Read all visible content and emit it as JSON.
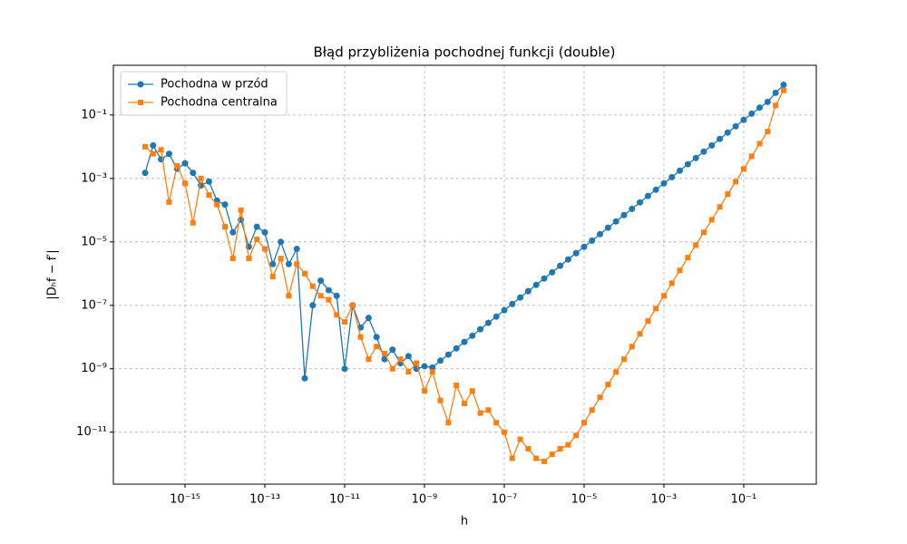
{
  "chart_data": {
    "type": "line",
    "title": "Błąd przybliżenia pochodnej funkcji (double)",
    "xlabel": "h",
    "ylabel": "|Dₕf − f′|",
    "xscale": "log",
    "yscale": "log",
    "grid": true,
    "legend": "upper left",
    "xlim": [
      1.6e-17,
      6.6
    ],
    "ylim": [
      2.3e-13,
      3.7
    ],
    "xticks": [
      {
        "value": 1e-15,
        "label": "10⁻¹⁵"
      },
      {
        "value": 1e-13,
        "label": "10⁻¹³"
      },
      {
        "value": 1e-11,
        "label": "10⁻¹¹"
      },
      {
        "value": 1e-09,
        "label": "10⁻⁹"
      },
      {
        "value": 1e-07,
        "label": "10⁻⁷"
      },
      {
        "value": 1e-05,
        "label": "10⁻⁵"
      },
      {
        "value": 0.001,
        "label": "10⁻³"
      },
      {
        "value": 0.1,
        "label": "10⁻¹"
      }
    ],
    "yticks": [
      {
        "value": 1e-11,
        "label": "10⁻¹¹"
      },
      {
        "value": 1e-09,
        "label": "10⁻⁹"
      },
      {
        "value": 1e-07,
        "label": "10⁻⁷"
      },
      {
        "value": 1e-05,
        "label": "10⁻⁵"
      },
      {
        "value": 0.001,
        "label": "10⁻³"
      },
      {
        "value": 0.1,
        "label": "10⁻¹"
      }
    ],
    "x": [
      1e-16,
      1.585e-16,
      2.512e-16,
      3.981e-16,
      6.31e-16,
      1e-15,
      1.585e-15,
      2.512e-15,
      3.981e-15,
      6.31e-15,
      1e-14,
      1.585e-14,
      2.512e-14,
      3.981e-14,
      6.31e-14,
      1e-13,
      1.585e-13,
      2.512e-13,
      3.981e-13,
      6.31e-13,
      1e-12,
      1.585e-12,
      2.512e-12,
      3.981e-12,
      6.31e-12,
      1e-11,
      1.585e-11,
      2.512e-11,
      3.981e-11,
      6.31e-11,
      1e-10,
      1.585e-10,
      2.512e-10,
      3.981e-10,
      6.31e-10,
      1e-09,
      1.585e-09,
      2.512e-09,
      3.981e-09,
      6.31e-09,
      1e-08,
      1.585e-08,
      2.512e-08,
      3.981e-08,
      6.31e-08,
      1e-07,
      1.585e-07,
      2.512e-07,
      3.981e-07,
      6.31e-07,
      1e-06,
      1.585e-06,
      2.512e-06,
      3.981e-06,
      6.31e-06,
      1e-05,
      1.585e-05,
      2.512e-05,
      3.981e-05,
      6.31e-05,
      0.0001,
      0.0001585,
      0.0002512,
      0.0003981,
      0.000631,
      0.001,
      0.001585,
      0.002512,
      0.003981,
      0.00631,
      0.01,
      0.01585,
      0.02512,
      0.03981,
      0.0631,
      0.1,
      0.1585,
      0.2512,
      0.3981,
      0.631,
      1
    ],
    "series": [
      {
        "name": "Pochodna w przód",
        "color": "#1f77b4",
        "marker": "o",
        "values": [
          0.0015,
          0.011,
          0.004,
          0.006,
          0.002,
          0.003,
          0.0015,
          0.0006,
          0.0008,
          0.0002,
          0.00015,
          2e-05,
          5e-05,
          7e-06,
          3e-05,
          2e-05,
          2e-06,
          1e-05,
          2e-06,
          6e-06,
          5e-10,
          1e-07,
          6e-07,
          3e-07,
          2e-07,
          1e-09,
          1e-07,
          2e-08,
          4e-08,
          1e-08,
          2e-09,
          4e-09,
          1.5e-09,
          2.5e-09,
          1e-09,
          1.2e-09,
          1.1e-09,
          1.8e-09,
          2.8e-09,
          4.4e-09,
          7e-09,
          1.1e-08,
          1.76e-08,
          2.8e-08,
          4.4e-08,
          7e-08,
          1.1e-07,
          1.76e-07,
          2.8e-07,
          4.4e-07,
          7e-07,
          1.1e-06,
          1.76e-06,
          2.8e-06,
          4.4e-06,
          7e-06,
          1.1e-05,
          1.76e-05,
          2.8e-05,
          4.4e-05,
          7e-05,
          0.00011,
          0.000176,
          0.00028,
          0.00044,
          0.0007,
          0.0011,
          0.00176,
          0.0028,
          0.0044,
          0.007,
          0.011,
          0.0176,
          0.028,
          0.044,
          0.07,
          0.11,
          0.17,
          0.26,
          0.5,
          0.9
        ]
      },
      {
        "name": "Pochodna centralna",
        "color": "#ff7f0e",
        "marker": "s",
        "values": [
          0.01,
          0.006,
          0.008,
          0.00018,
          0.0025,
          0.0007,
          4e-05,
          0.001,
          0.0003,
          0.00015,
          3e-05,
          3e-06,
          0.0001,
          3e-06,
          1.2e-05,
          6e-06,
          8e-07,
          3e-06,
          2e-07,
          2e-06,
          1e-06,
          4e-07,
          2e-07,
          1.5e-07,
          5e-08,
          3e-08,
          1e-07,
          1e-08,
          2e-09,
          5e-09,
          3e-09,
          1e-09,
          2e-09,
          8e-10,
          1.5e-09,
          2e-10,
          8e-10,
          1e-10,
          2e-11,
          3e-10,
          8e-11,
          2e-10,
          4e-11,
          5e-11,
          2e-11,
          1e-11,
          1.5e-12,
          6e-12,
          3e-12,
          1.5e-12,
          1.2e-12,
          2e-12,
          3e-12,
          4e-12,
          7.9e-12,
          2e-11,
          5e-11,
          1.26e-10,
          3.2e-10,
          7.9e-10,
          2e-09,
          5e-09,
          1.26e-08,
          3.2e-08,
          7.9e-08,
          2e-07,
          5e-07,
          1.26e-06,
          3.2e-06,
          7.9e-06,
          2e-05,
          5e-05,
          0.000126,
          0.00032,
          0.00079,
          0.002,
          0.005,
          0.0125,
          0.03,
          0.2,
          0.6
        ]
      }
    ]
  }
}
